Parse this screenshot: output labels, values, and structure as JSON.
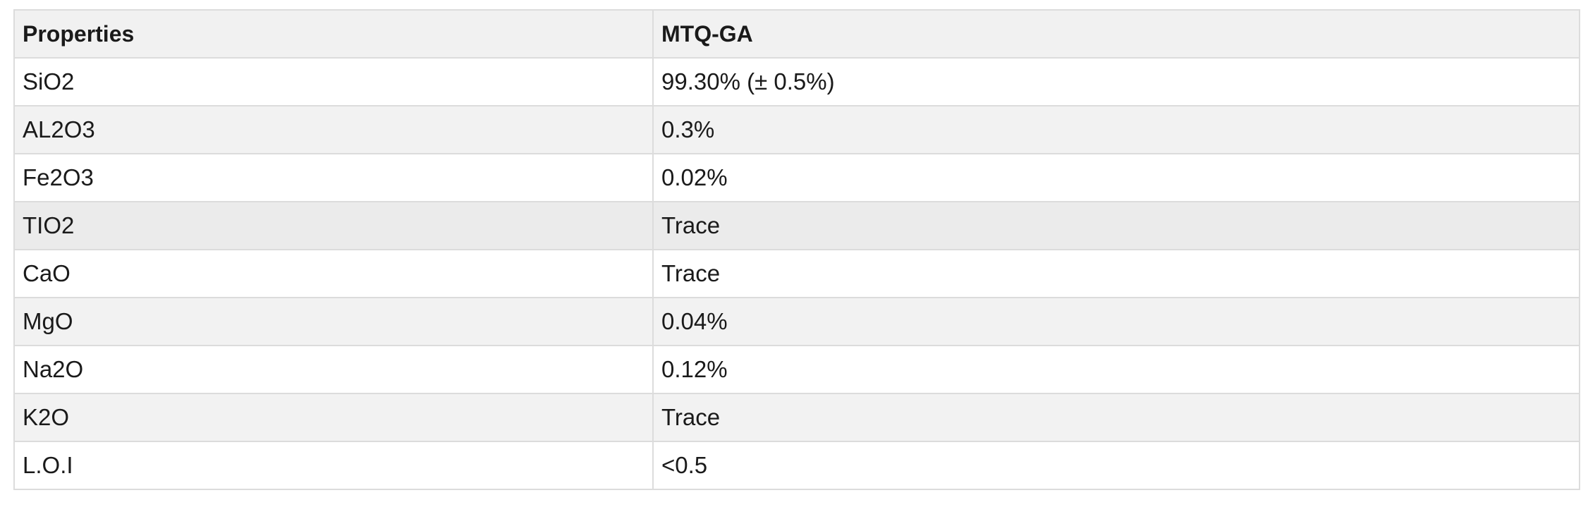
{
  "table": {
    "headers": [
      "Properties",
      "MTQ-GA"
    ],
    "rows": [
      [
        "SiO2",
        "99.30% (± 0.5%)"
      ],
      [
        "AL2O3",
        "0.3%"
      ],
      [
        "Fe2O3",
        "0.02%"
      ],
      [
        "TIO2",
        "Trace"
      ],
      [
        "CaO",
        "Trace"
      ],
      [
        "MgO",
        "0.04%"
      ],
      [
        "Na2O",
        "0.12%"
      ],
      [
        "K2O",
        "Trace"
      ],
      [
        "L.O.I",
        "<0.5"
      ]
    ]
  }
}
